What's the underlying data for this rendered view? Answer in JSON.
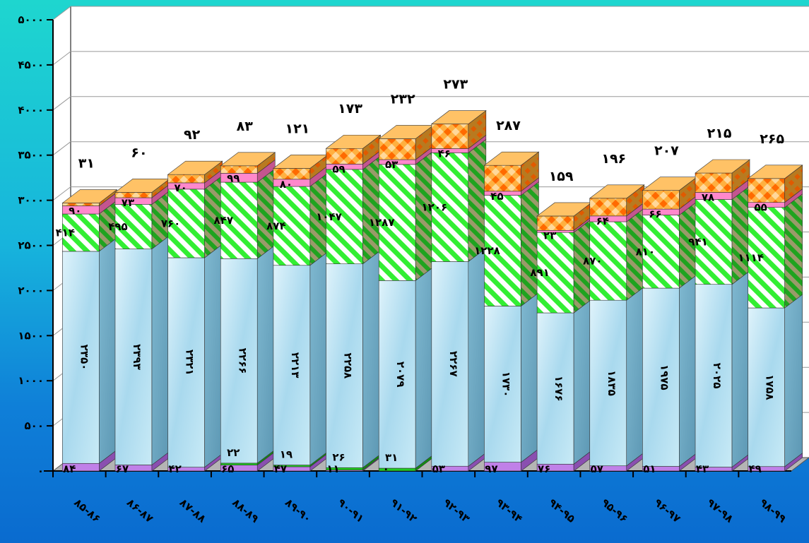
{
  "chart_data": {
    "type": "bar",
    "stacked": true,
    "three_d": true,
    "categories": [
      "۸۵-۸۶",
      "۸۶-۸۷",
      "۸۷-۸۸",
      "۸۸-۸۹",
      "۸۹-۹۰",
      "۹۰-۹۱",
      "۹۱-۹۲",
      "۹۲-۹۳",
      "۹۳-۹۴",
      "۹۴-۹۵",
      "۹۵-۹۶",
      "۹۶-۹۷",
      "۹۷-۹۸",
      "۹۸-۹۹"
    ],
    "series": [
      {
        "values": [
          84,
          67,
          42,
          65,
          47,
          11,
          0,
          53,
          97,
          76,
          57,
          51,
          43,
          49
        ],
        "labels": [
          "۸۴",
          "۶۷",
          "۴۲",
          "۶۵",
          "۴۷",
          "۱۱",
          "۰",
          "۵۳",
          "۹۷",
          "۷۶",
          "۵۷",
          "۵۱",
          "۴۳",
          "۴۹"
        ],
        "color": "#c080e8"
      },
      {
        "values": [
          0,
          0,
          0,
          22,
          19,
          26,
          31,
          0,
          0,
          0,
          0,
          0,
          0,
          0
        ],
        "labels": [
          "",
          "",
          "",
          "۲۲",
          "۱۹",
          "۲۶",
          "۳۱",
          "",
          "",
          "",
          "",
          "",
          "",
          ""
        ],
        "color": "#22cc22"
      },
      {
        "values": [
          2350,
          2393,
          2321,
          2266,
          2213,
          2258,
          2079,
          2267,
          1730,
          1676,
          1835,
          1975,
          2025,
          1758
        ],
        "labels": [
          "۲۳۵۰",
          "۲۳۹۳",
          "۲۳۲۱",
          "۲۲۶۶",
          "۲۲۱۳",
          "۲۲۵۸",
          "۲۰۷۹",
          "۲۲۶۷",
          "۱۷۳۰",
          "۱۶۷۶",
          "۱۸۳۵",
          "۱۹۷۵",
          "۲۰۲۵",
          "۱۷۵۸"
        ],
        "color": "#bfe6f2"
      },
      {
        "values": [
          414,
          495,
          760,
          847,
          874,
          1047,
          1287,
          1206,
          1228,
          891,
          870,
          810,
          941,
          1114
        ],
        "labels": [
          "۴۱۴",
          "۴۹۵",
          "۷۶۰",
          "۸۴۷",
          "۸۷۴",
          "۱۰۴۷",
          "۱۲۸۷",
          "۱۲۰۶",
          "۱۲۲۸",
          "۸۹۱",
          "۸۷۰",
          "۸۱۰",
          "۹۴۱",
          "۱۱۱۴"
        ],
        "color": "#33ee33"
      },
      {
        "values": [
          90,
          73,
          70,
          99,
          80,
          59,
          53,
          46,
          45,
          23,
          64,
          66,
          78,
          55
        ],
        "labels": [
          "۹۰",
          "۷۳",
          "۷۰",
          "۹۹",
          "۸۰",
          "۵۹",
          "۵۳",
          "۴۶",
          "۴۵",
          "۲۳",
          "۶۴",
          "۶۶",
          "۷۸",
          "۵۵"
        ],
        "color": "#ff88cc"
      },
      {
        "values": [
          31,
          60,
          92,
          83,
          121,
          173,
          232,
          273,
          287,
          159,
          196,
          207,
          215,
          265
        ],
        "labels": [
          "۳۱",
          "۶۰",
          "۹۲",
          "۸۳",
          "۱۲۱",
          "۱۷۳",
          "۲۳۲",
          "۲۷۳",
          "۲۸۷",
          "۱۵۹",
          "۱۹۶",
          "۲۰۷",
          "۲۱۵",
          "۲۶۵"
        ],
        "color": "#ff9933"
      }
    ],
    "ytick_labels": [
      "۰",
      "۵۰۰",
      "۱۰۰۰",
      "۱۵۰۰",
      "۲۰۰۰",
      "۲۵۰۰",
      "۳۰۰۰",
      "۳۵۰۰",
      "۴۰۰۰",
      "۴۵۰۰",
      "۵۰۰۰"
    ],
    "ylim": [
      0,
      5000
    ],
    "grid": true,
    "legend": "none"
  }
}
